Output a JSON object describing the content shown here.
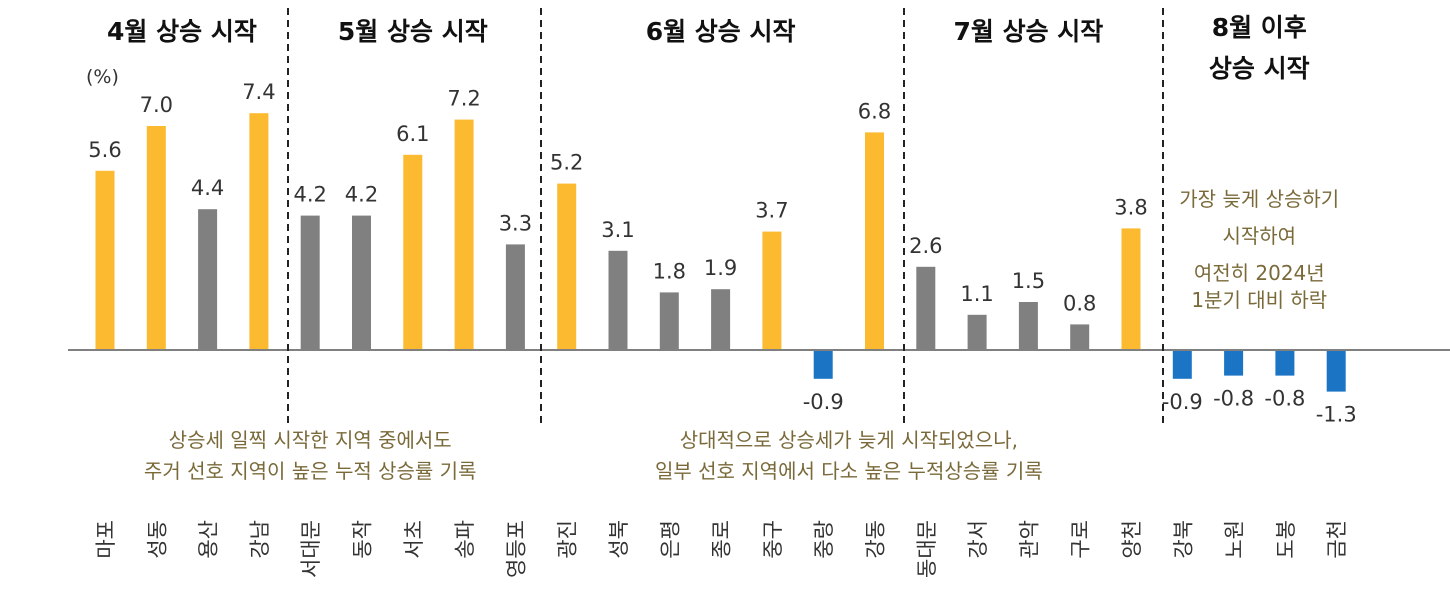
{
  "chart_data": {
    "type": "bar",
    "unit": "(%)",
    "categories": [
      "마포",
      "성동",
      "용산",
      "강남",
      "서대문",
      "동작",
      "서초",
      "송파",
      "영등포",
      "광진",
      "성북",
      "은평",
      "종로",
      "중구",
      "중랑",
      "강동",
      "동대문",
      "강서",
      "관악",
      "구로",
      "양천",
      "강북",
      "노원",
      "도봉",
      "금천"
    ],
    "values": [
      5.6,
      7.0,
      4.4,
      7.4,
      4.2,
      4.2,
      6.1,
      7.2,
      3.3,
      5.2,
      3.1,
      1.8,
      1.9,
      3.7,
      -0.9,
      6.8,
      2.6,
      1.1,
      1.5,
      0.8,
      3.8,
      -0.9,
      -0.8,
      -0.8,
      -1.3
    ],
    "value_labels": [
      "5.6",
      "7.0",
      "4.4",
      "7.4",
      "4.2",
      "4.2",
      "6.1",
      "7.2",
      "3.3",
      "5.2",
      "3.1",
      "1.8",
      "1.9",
      "3.7",
      "-0.9",
      "6.8",
      "2.6",
      "1.1",
      "1.5",
      "0.8",
      "3.8",
      "-0.9",
      "-0.8",
      "-0.8",
      "-1.3"
    ],
    "highlight": [
      true,
      true,
      false,
      true,
      false,
      false,
      true,
      true,
      false,
      true,
      false,
      false,
      false,
      true,
      false,
      true,
      false,
      false,
      false,
      false,
      true,
      false,
      false,
      false,
      false
    ],
    "colors": {
      "highlight": "#FBBA2F",
      "normal": "#808080",
      "negative": "#1B75C4"
    },
    "groups": [
      {
        "title": [
          "4월 상승 시작"
        ],
        "start": 0,
        "end": 3
      },
      {
        "title": [
          "5월 상승 시작"
        ],
        "start": 4,
        "end": 8
      },
      {
        "title": [
          "6월 상승 시작"
        ],
        "start": 9,
        "end": 15
      },
      {
        "title": [
          "7월 상승 시작"
        ],
        "start": 16,
        "end": 20
      },
      {
        "title": [
          "8월 이후",
          "상승 시작"
        ],
        "start": 21,
        "end": 24
      }
    ],
    "annotations": [
      {
        "lines": [
          "상승세 일찍 시작한 지역 중에서도",
          "주거 선호 지역이 높은 누적 상승률 기록"
        ],
        "start": 0,
        "end": 8
      },
      {
        "lines": [
          "상대적으로 상승세가 늦게 시작되었으나,",
          "일부 선호 지역에서 다소 높은 누적상승률 기록"
        ],
        "start": 9,
        "end": 20
      },
      {
        "lines": [
          "가장 늦게 상승하기",
          "시작하여",
          "여전히 2024년",
          "1분기 대비 하락"
        ],
        "start": 21,
        "end": 24
      }
    ]
  }
}
